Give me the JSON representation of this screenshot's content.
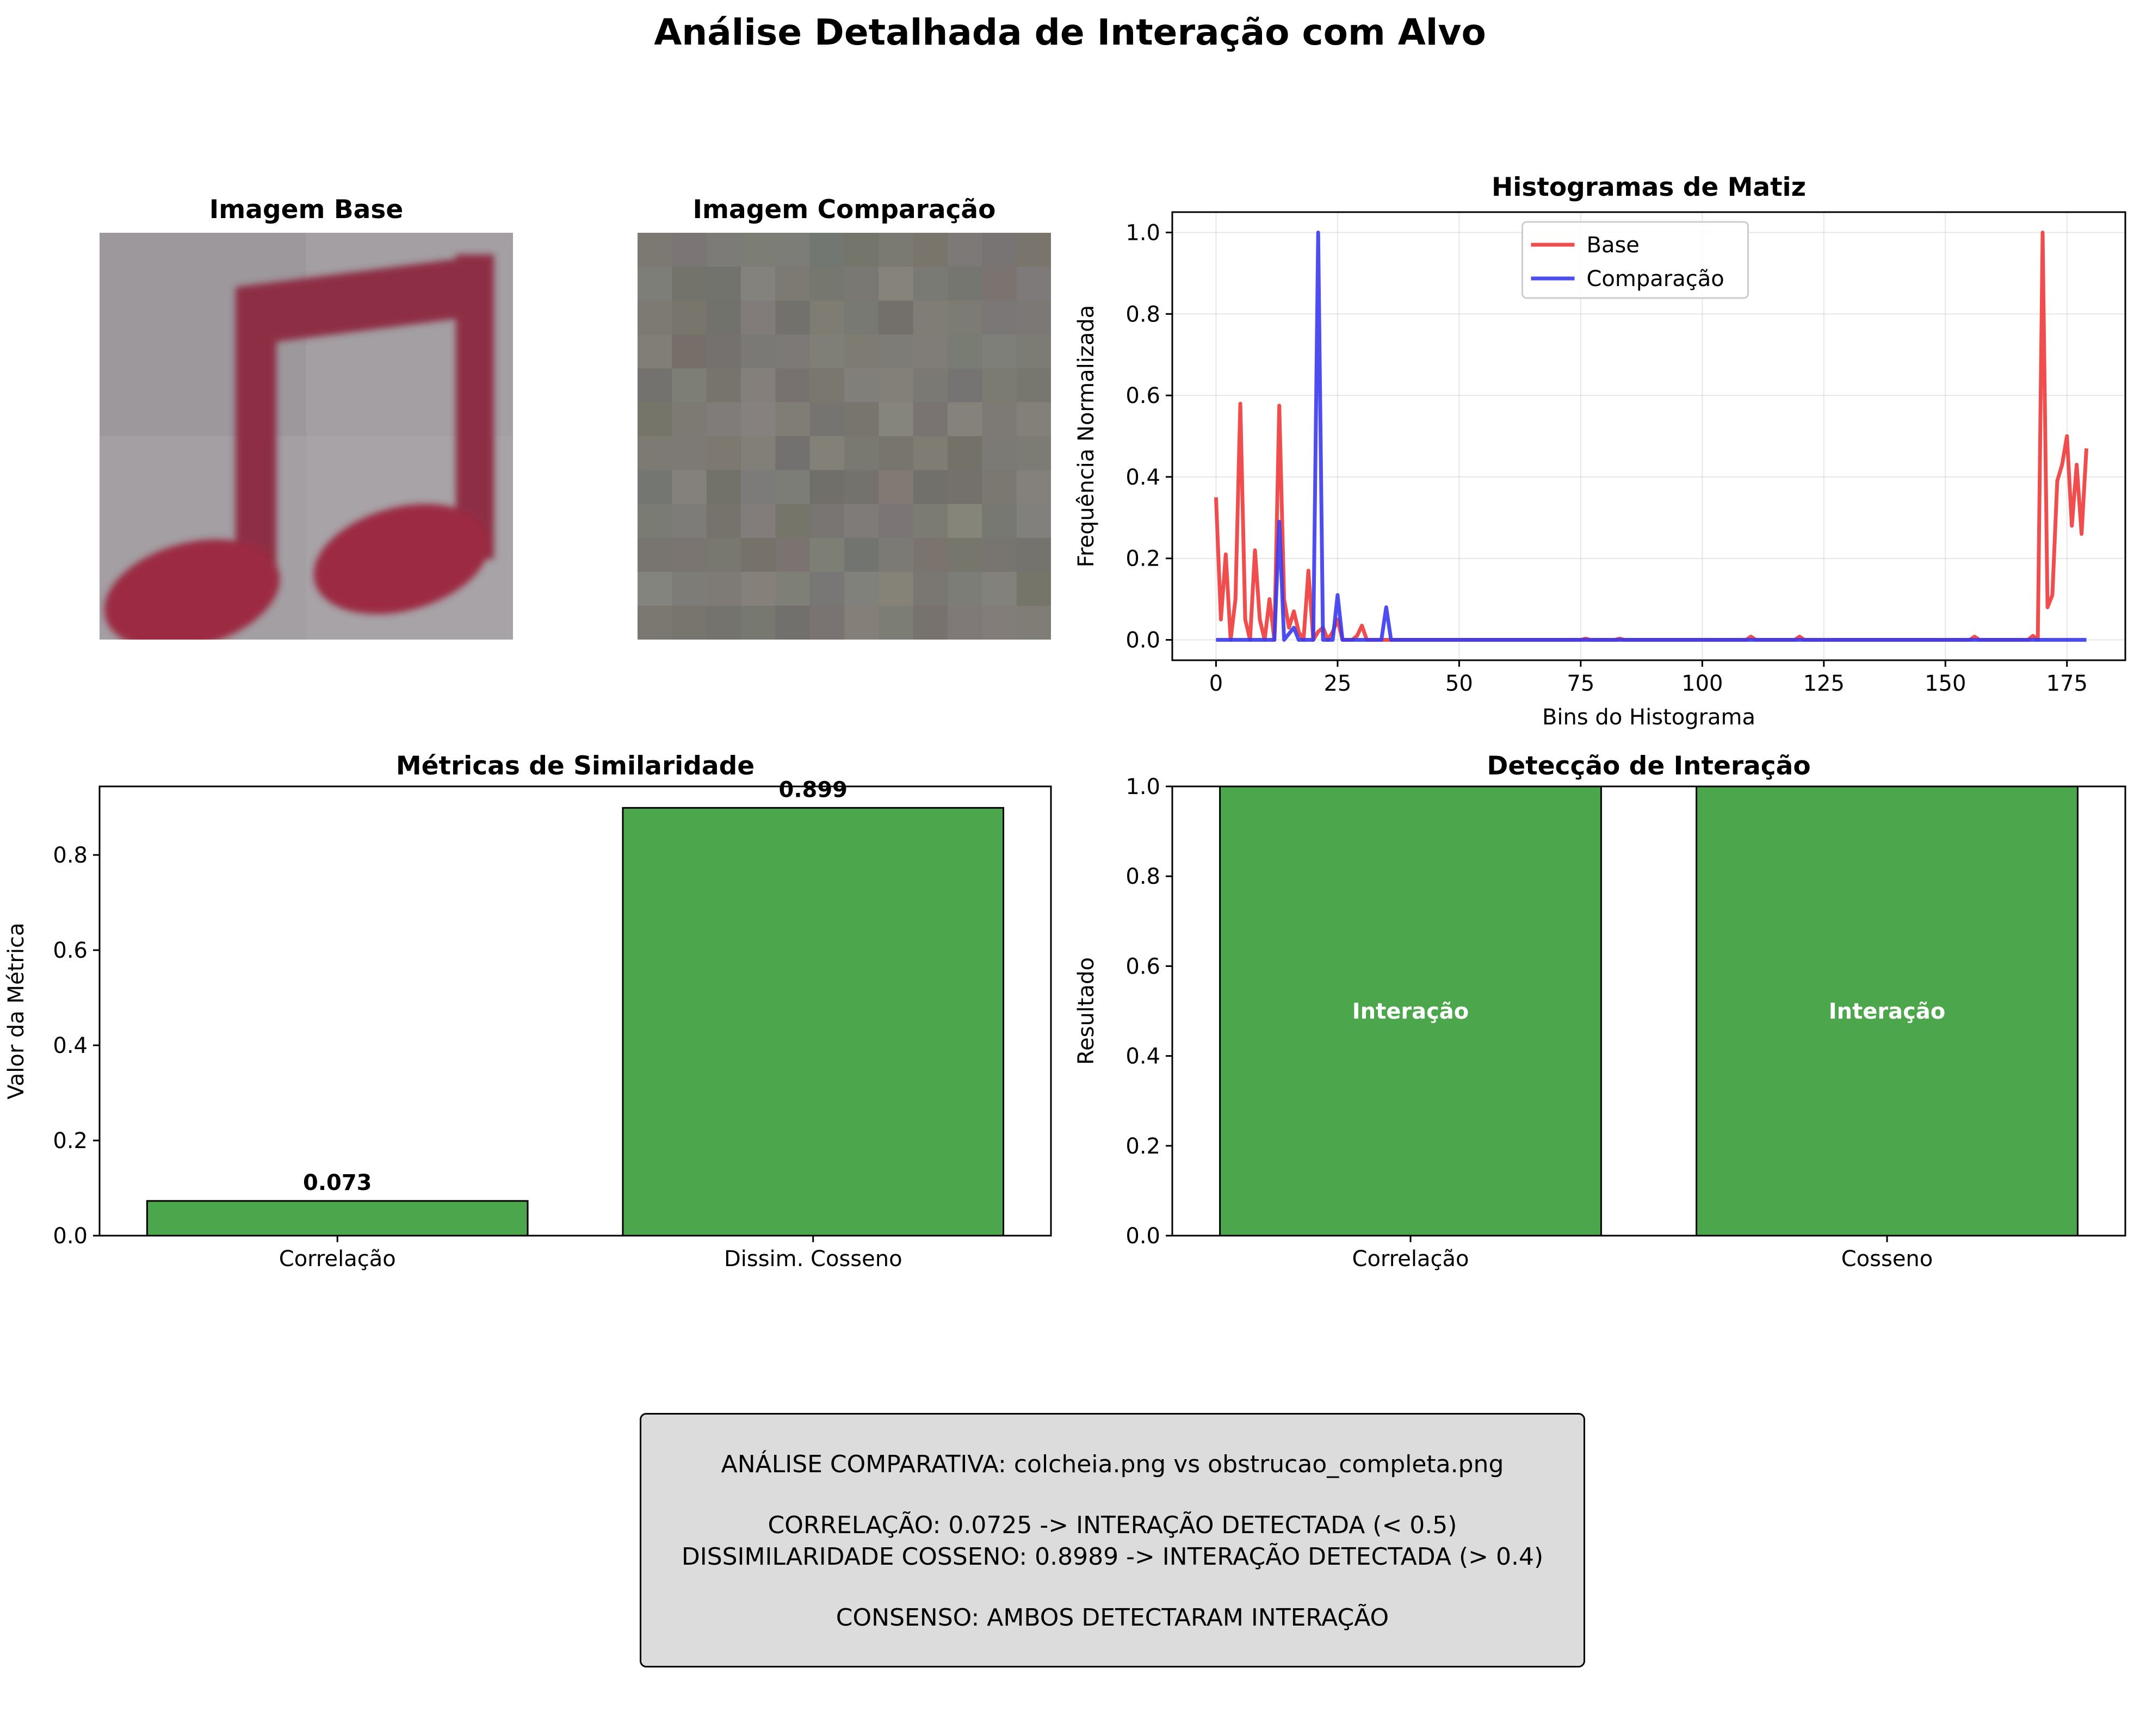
{
  "suptitle": "Análise Detalhada de Interação com Alvo",
  "images": {
    "base_title": "Imagem Base",
    "comparison_title": "Imagem Comparação"
  },
  "chart_data": [
    {
      "type": "line",
      "title": "Histogramas de Matiz",
      "xlabel": "Bins do Histograma",
      "ylabel": "Frequência Normalizada",
      "xlim": [
        -9,
        187
      ],
      "ylim": [
        -0.05,
        1.05
      ],
      "xticks": [
        0,
        25,
        50,
        75,
        100,
        125,
        150,
        175
      ],
      "yticks": [
        0.0,
        0.2,
        0.4,
        0.6,
        0.8,
        1.0
      ],
      "grid": true,
      "legend": "upper-center",
      "series": [
        {
          "name": "Base",
          "color": "#ee3b3b",
          "points": [
            [
              0,
              0.35
            ],
            [
              1,
              0.05
            ],
            [
              2,
              0.21
            ],
            [
              3,
              0.0
            ],
            [
              4,
              0.1
            ],
            [
              5,
              0.58
            ],
            [
              6,
              0.05
            ],
            [
              7,
              0.0
            ],
            [
              8,
              0.22
            ],
            [
              9,
              0.05
            ],
            [
              10,
              0.0
            ],
            [
              11,
              0.1
            ],
            [
              12,
              0.0
            ],
            [
              13,
              0.575
            ],
            [
              14,
              0.1
            ],
            [
              15,
              0.03
            ],
            [
              16,
              0.07
            ],
            [
              17,
              0.02
            ],
            [
              18,
              0.0
            ],
            [
              19,
              0.17
            ],
            [
              20,
              0.0
            ],
            [
              21,
              0.02
            ],
            [
              22,
              0.03
            ],
            [
              23,
              0.0
            ],
            [
              24,
              0.02
            ],
            [
              25,
              0.05
            ],
            [
              26,
              0.0
            ],
            [
              28,
              0.0
            ],
            [
              29,
              0.01
            ],
            [
              30,
              0.035
            ],
            [
              31,
              0.0
            ],
            [
              36,
              0.0
            ],
            [
              75,
              0.0
            ],
            [
              76,
              0.003
            ],
            [
              77,
              0.0
            ],
            [
              82,
              0.0
            ],
            [
              83,
              0.003
            ],
            [
              84,
              0.0
            ],
            [
              109,
              0.0
            ],
            [
              110,
              0.008
            ],
            [
              111,
              0.0
            ],
            [
              119,
              0.0
            ],
            [
              120,
              0.008
            ],
            [
              121,
              0.0
            ],
            [
              155,
              0.0
            ],
            [
              156,
              0.008
            ],
            [
              157,
              0.0
            ],
            [
              167,
              0.0
            ],
            [
              168,
              0.01
            ],
            [
              169,
              0.0
            ],
            [
              170,
              1.0
            ],
            [
              171,
              0.08
            ],
            [
              172,
              0.11
            ],
            [
              173,
              0.39
            ],
            [
              174,
              0.43
            ],
            [
              175,
              0.5
            ],
            [
              176,
              0.28
            ],
            [
              177,
              0.43
            ],
            [
              178,
              0.26
            ],
            [
              179,
              0.47
            ]
          ]
        },
        {
          "name": "Comparação",
          "color": "#3b3bee",
          "points": [
            [
              0,
              0.0
            ],
            [
              12,
              0.0
            ],
            [
              13,
              0.29
            ],
            [
              14,
              0.0
            ],
            [
              16,
              0.03
            ],
            [
              17,
              0.0
            ],
            [
              20,
              0.0
            ],
            [
              21,
              1.0
            ],
            [
              22,
              0.0
            ],
            [
              24,
              0.0
            ],
            [
              25,
              0.11
            ],
            [
              26,
              0.0
            ],
            [
              34,
              0.0
            ],
            [
              35,
              0.08
            ],
            [
              36,
              0.0
            ],
            [
              179,
              0.0
            ]
          ]
        }
      ]
    },
    {
      "type": "bar",
      "title": "Métricas de Similaridade",
      "ylabel": "Valor da Métrica",
      "categories": [
        "Correlação",
        "Dissim. Cosseno"
      ],
      "values": [
        0.073,
        0.899
      ],
      "value_labels": [
        "0.073",
        "0.899"
      ],
      "ylim": [
        0,
        0.944
      ],
      "yticks": [
        0.0,
        0.2,
        0.4,
        0.6,
        0.8
      ],
      "bar_color": "#4ca64c"
    },
    {
      "type": "bar",
      "title": "Detecção de Interação",
      "ylabel": "Resultado",
      "categories": [
        "Correlação",
        "Cosseno"
      ],
      "values": [
        1.0,
        1.0
      ],
      "inner_labels": [
        "Interação",
        "Interação"
      ],
      "ylim": [
        0,
        1.0
      ],
      "yticks": [
        0.0,
        0.2,
        0.4,
        0.6,
        0.8,
        1.0
      ],
      "bar_color": "#4ca64c"
    }
  ],
  "summary": {
    "line1": "ANÁLISE COMPARATIVA: colcheia.png vs obstrucao_completa.png",
    "line2": "CORRELAÇÃO: 0.0725 -> INTERAÇÃO DETECTADA (< 0.5)",
    "line3": "DISSIMILARIDADE COSSENO: 0.8989 -> INTERAÇÃO DETECTADA (> 0.4)",
    "line4": "CONSENSO: AMBOS DETECTARAM INTERAÇÃO"
  }
}
